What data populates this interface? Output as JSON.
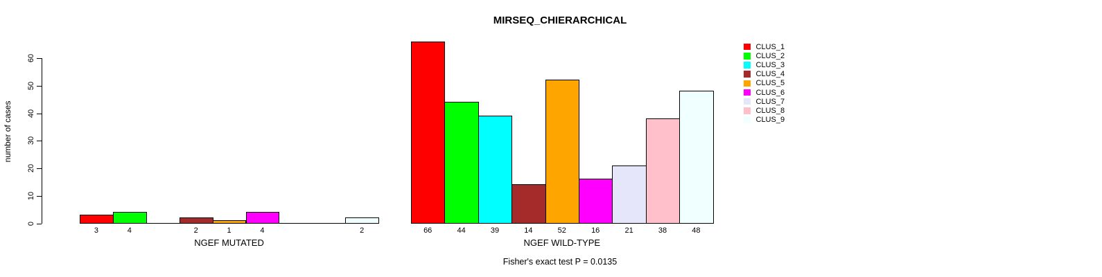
{
  "chart_data": {
    "type": "bar",
    "title": "MIRSEQ_CHIERARCHICAL",
    "ylabel": "number of cases",
    "xlabel": "",
    "ylim": [
      0,
      66
    ],
    "yticks": [
      0,
      10,
      20,
      30,
      40,
      50,
      60
    ],
    "grid": false,
    "legend_position": "right",
    "annotation": "Fisher's exact test P = 0.0135",
    "categories": [
      "CLUS_1",
      "CLUS_2",
      "CLUS_3",
      "CLUS_4",
      "CLUS_5",
      "CLUS_6",
      "CLUS_7",
      "CLUS_8",
      "CLUS_9"
    ],
    "colors": [
      "#FF0000",
      "#00FF00",
      "#00FFFF",
      "#A52A2A",
      "#FFA500",
      "#FF00FF",
      "#E6E6FA",
      "#FFC0CB",
      "#F0FFFF"
    ],
    "bar_border_color": "#000000",
    "groups": [
      {
        "label": "NGEF MUTATED",
        "values": [
          3,
          4,
          0,
          2,
          1,
          4,
          0,
          0,
          2
        ]
      },
      {
        "label": "NGEF WILD-TYPE",
        "values": [
          66,
          44,
          39,
          14,
          52,
          16,
          21,
          38,
          48
        ]
      }
    ],
    "zero_value_labels_hidden": true
  }
}
